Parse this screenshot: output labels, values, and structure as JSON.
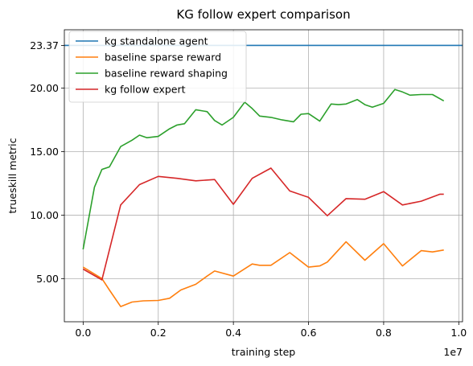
{
  "chart_data": {
    "type": "line",
    "title": "KG follow expert comparison",
    "xlabel": "training step",
    "ylabel": "trueskill metric",
    "x_offset_label": "1e7",
    "xlim": [
      -0.05,
      1.01
    ],
    "ylim": [
      1.6,
      24.6
    ],
    "x_ticks": [
      0.0,
      0.2,
      0.4,
      0.6,
      0.8,
      1.0
    ],
    "x_tick_labels": [
      "0.0",
      "0.2",
      "0.4",
      "0.6",
      "0.8",
      "1.0"
    ],
    "y_ticks": [
      5,
      10,
      15,
      20,
      23.37
    ],
    "y_tick_labels": [
      "5.00",
      "10.00",
      "15.00",
      "20.00",
      "23.37"
    ],
    "grid": true,
    "legend_position": "top-left",
    "series": [
      {
        "name": "kg standalone agent",
        "color": "#1f77b4",
        "kind": "hline",
        "y": 23.37
      },
      {
        "name": "baseline sparse reward",
        "color": "#ff7f0e",
        "kind": "line",
        "x": [
          0.0,
          0.05,
          0.07,
          0.1,
          0.13,
          0.16,
          0.2,
          0.23,
          0.26,
          0.3,
          0.33,
          0.35,
          0.4,
          0.45,
          0.47,
          0.5,
          0.55,
          0.6,
          0.63,
          0.65,
          0.7,
          0.75,
          0.8,
          0.85,
          0.9,
          0.93,
          0.96
        ],
        "y": [
          5.9,
          5.0,
          4.1,
          2.8,
          3.15,
          3.25,
          3.28,
          3.45,
          4.1,
          4.55,
          5.2,
          5.6,
          5.2,
          6.15,
          6.05,
          6.05,
          7.05,
          5.9,
          6.0,
          6.3,
          7.9,
          6.45,
          7.75,
          6.0,
          7.2,
          7.1,
          7.25
        ]
      },
      {
        "name": "baseline reward shaping",
        "color": "#2ca02c",
        "kind": "line",
        "x": [
          0.0,
          0.03,
          0.05,
          0.07,
          0.1,
          0.13,
          0.15,
          0.17,
          0.2,
          0.23,
          0.25,
          0.27,
          0.3,
          0.33,
          0.35,
          0.37,
          0.4,
          0.43,
          0.45,
          0.47,
          0.5,
          0.53,
          0.56,
          0.58,
          0.6,
          0.63,
          0.66,
          0.68,
          0.7,
          0.73,
          0.75,
          0.77,
          0.8,
          0.83,
          0.85,
          0.87,
          0.9,
          0.93,
          0.96
        ],
        "y": [
          7.3,
          12.2,
          13.6,
          13.8,
          15.4,
          15.9,
          16.3,
          16.1,
          16.2,
          16.8,
          17.1,
          17.2,
          18.3,
          18.15,
          17.45,
          17.1,
          17.7,
          18.9,
          18.4,
          17.8,
          17.7,
          17.5,
          17.35,
          17.95,
          18.0,
          17.4,
          18.75,
          18.7,
          18.75,
          19.1,
          18.7,
          18.5,
          18.8,
          19.9,
          19.7,
          19.45,
          19.5,
          19.5,
          19.0
        ]
      },
      {
        "name": "kg follow expert",
        "color": "#d62728",
        "kind": "line",
        "x": [
          0.0,
          0.05,
          0.1,
          0.15,
          0.2,
          0.25,
          0.3,
          0.35,
          0.4,
          0.45,
          0.5,
          0.55,
          0.6,
          0.65,
          0.7,
          0.75,
          0.8,
          0.85,
          0.9,
          0.95,
          0.96
        ],
        "y": [
          5.75,
          4.9,
          10.8,
          12.4,
          13.05,
          12.9,
          12.7,
          12.8,
          10.85,
          12.9,
          13.7,
          11.9,
          11.4,
          9.95,
          11.3,
          11.25,
          11.85,
          10.8,
          11.1,
          11.65,
          11.65
        ]
      }
    ]
  }
}
